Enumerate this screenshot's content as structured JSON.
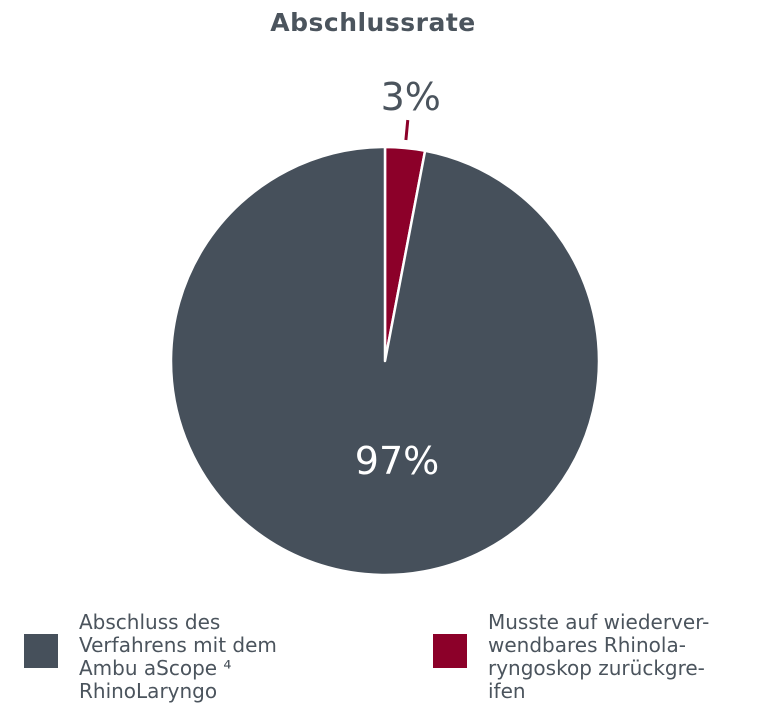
{
  "chart_data": {
    "type": "pie",
    "title": "Abschlussrate",
    "slices": [
      {
        "label": "Abschluss des Verfahrens mit dem Ambu aScope 4 RhinoLaryngo",
        "legend_text": "Abschluss des\nVerfahrens mit dem\nAmbu aScope ⁴\nRhinoLaryngo",
        "value": 97,
        "value_label": "97%",
        "color": "#46505b"
      },
      {
        "label": "Musste auf wiederverwendbares Rhinolaryngoskop zurückgreifen",
        "legend_text": "Musste auf wiederver-\nwendbares Rhinola-\nryngoskop zurückgre-\nifen",
        "value": 3,
        "value_label": "3%",
        "color": "#8c0029"
      }
    ]
  }
}
